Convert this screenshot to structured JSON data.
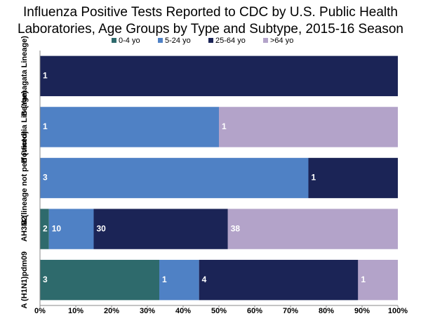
{
  "chart_data": {
    "type": "bar",
    "orientation": "horizontal",
    "stacking": "percent",
    "title": [
      "Influenza Positive Tests Reported to CDC by U.S. Public Health",
      "Laboratories, Age Groups by Type and Subtype, 2015-16 Season"
    ],
    "categories": [
      "B (Yamagata Lineage)",
      "B (Victoria Lineage)",
      "B (lineage not performed)",
      "AH3N2",
      "A (H1N1)pdm09"
    ],
    "series": [
      {
        "name": "0-4 yo",
        "color": "#2e6a6c",
        "values": [
          0,
          0,
          0,
          2,
          3
        ]
      },
      {
        "name": "5-24 yo",
        "color": "#4f81c5",
        "values": [
          0,
          1,
          3,
          10,
          1
        ]
      },
      {
        "name": "25-64 yo",
        "color": "#1b2456",
        "values": [
          1,
          0,
          1,
          30,
          4
        ]
      },
      {
        "name": ">64 yo",
        "color": "#b3a3c9",
        "values": [
          0,
          1,
          0,
          38,
          1
        ]
      }
    ],
    "xlim": [
      0,
      100
    ],
    "xticks": [
      {
        "value": 0,
        "label": "0%"
      },
      {
        "value": 10,
        "label": "10%"
      },
      {
        "value": 20,
        "label": "20%"
      },
      {
        "value": 30,
        "label": "30%"
      },
      {
        "value": 40,
        "label": "40%"
      },
      {
        "value": 50,
        "label": "50%"
      },
      {
        "value": 60,
        "label": "60%"
      },
      {
        "value": 70,
        "label": "70%"
      },
      {
        "value": 80,
        "label": "80%"
      },
      {
        "value": 90,
        "label": "90%"
      },
      {
        "value": 100,
        "label": "100%"
      }
    ],
    "legend": "top",
    "grid": false
  }
}
